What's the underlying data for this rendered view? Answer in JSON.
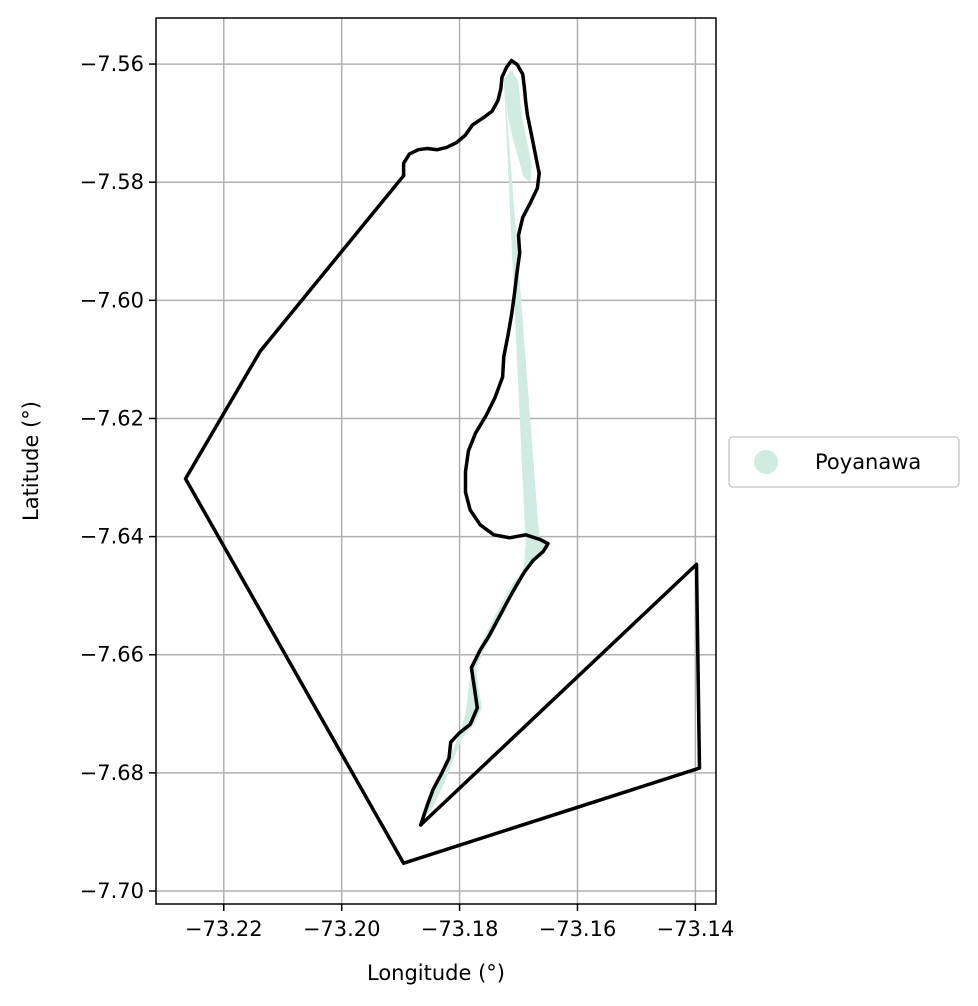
{
  "chart_data": {
    "type": "map",
    "xlabel": "Longitude (°)",
    "ylabel": "Latitude (°)",
    "xlim": [
      -73.2315,
      -73.1365
    ],
    "ylim": [
      -7.7022,
      -7.5522
    ],
    "grid": true,
    "x_ticks": [
      -73.22,
      -73.2,
      -73.18,
      -73.16,
      -73.14
    ],
    "x_tick_labels": [
      "−73.22",
      "−73.20",
      "−73.18",
      "−73.16",
      "−73.14"
    ],
    "y_ticks": [
      -7.56,
      -7.58,
      -7.6,
      -7.62,
      -7.64,
      -7.66,
      -7.68,
      -7.7
    ],
    "y_tick_labels": [
      "−7.56",
      "−7.58",
      "−7.60",
      "−7.62",
      "−7.64",
      "−7.66",
      "−7.68",
      "−7.70"
    ],
    "legend": {
      "placement": "center-right outside",
      "entries": [
        {
          "label": "Poyanawa",
          "color": "#d0ebdf"
        }
      ]
    },
    "colors": {
      "fill": "#d0ebdf",
      "outline": "#000000",
      "grid": "#b0b0b0"
    },
    "outline_polygon": [
      [
        -73.1866,
        -7.6888
      ],
      [
        -73.1398,
        -7.6447
      ],
      [
        -73.1393,
        -7.6792
      ],
      [
        -73.1895,
        -7.6953
      ],
      [
        -73.2265,
        -7.6302
      ],
      [
        -73.2138,
        -7.6086
      ],
      [
        -73.1895,
        -7.5789
      ]
    ],
    "river_line": [
      [
        -73.1895,
        -7.5789
      ],
      [
        -73.1895,
        -7.5768
      ],
      [
        -73.1885,
        -7.5752
      ],
      [
        -73.187,
        -7.5745
      ],
      [
        -73.1855,
        -7.5743
      ],
      [
        -73.1838,
        -7.5745
      ],
      [
        -73.1822,
        -7.5741
      ],
      [
        -73.1805,
        -7.5733
      ],
      [
        -73.179,
        -7.572
      ],
      [
        -73.1778,
        -7.5703
      ],
      [
        -73.176,
        -7.5691
      ],
      [
        -73.1745,
        -7.568
      ],
      [
        -73.1735,
        -7.5662
      ],
      [
        -73.173,
        -7.5642
      ],
      [
        -73.1728,
        -7.5622
      ],
      [
        -73.172,
        -7.5605
      ],
      [
        -73.1712,
        -7.5594
      ],
      [
        -73.1702,
        -7.5601
      ],
      [
        -73.1693,
        -7.5617
      ],
      [
        -73.169,
        -7.564
      ],
      [
        -73.1688,
        -7.5662
      ],
      [
        -73.1685,
        -7.5686
      ],
      [
        -73.168,
        -7.571
      ],
      [
        -73.1675,
        -7.5735
      ],
      [
        -73.167,
        -7.576
      ],
      [
        -73.1665,
        -7.5785
      ],
      [
        -73.1668,
        -7.581
      ],
      [
        -73.168,
        -7.5835
      ],
      [
        -73.1693,
        -7.586
      ],
      [
        -73.17,
        -7.589
      ],
      [
        -73.1698,
        -7.592
      ],
      [
        -73.1703,
        -7.5955
      ],
      [
        -73.1707,
        -7.599
      ],
      [
        -73.1712,
        -7.6025
      ],
      [
        -73.1718,
        -7.606
      ],
      [
        -73.1725,
        -7.6095
      ],
      [
        -73.1727,
        -7.613
      ],
      [
        -73.174,
        -7.6165
      ],
      [
        -73.1755,
        -7.6195
      ],
      [
        -73.1773,
        -7.6225
      ],
      [
        -73.1785,
        -7.6255
      ],
      [
        -73.179,
        -7.629
      ],
      [
        -73.179,
        -7.6325
      ],
      [
        -73.1782,
        -7.6355
      ],
      [
        -73.1765,
        -7.638
      ],
      [
        -73.1742,
        -7.6397
      ],
      [
        -73.1715,
        -7.6402
      ],
      [
        -73.1688,
        -7.6397
      ],
      [
        -73.1663,
        -7.6405
      ],
      [
        -73.165,
        -7.6412
      ],
      [
        -73.1658,
        -7.6425
      ],
      [
        -73.1675,
        -7.644
      ],
      [
        -73.169,
        -7.646
      ],
      [
        -73.1705,
        -7.6485
      ],
      [
        -73.172,
        -7.6512
      ],
      [
        -73.1735,
        -7.654
      ],
      [
        -73.175,
        -7.6568
      ],
      [
        -73.1765,
        -7.6592
      ],
      [
        -73.178,
        -7.6622
      ],
      [
        -73.1775,
        -7.6655
      ],
      [
        -73.177,
        -7.669
      ],
      [
        -73.1782,
        -7.6718
      ],
      [
        -73.18,
        -7.6732
      ],
      [
        -73.1815,
        -7.6748
      ],
      [
        -73.1818,
        -7.6775
      ],
      [
        -73.183,
        -7.68
      ],
      [
        -73.1845,
        -7.6828
      ],
      [
        -73.1855,
        -7.6855
      ],
      [
        -73.1866,
        -7.6888
      ]
    ],
    "fill_polygon": [
      [
        -73.1725,
        -7.5625
      ],
      [
        -73.1712,
        -7.561
      ],
      [
        -73.17,
        -7.563
      ],
      [
        -73.1697,
        -7.5665
      ],
      [
        -73.1692,
        -7.57
      ],
      [
        -73.1685,
        -7.5735
      ],
      [
        -73.1678,
        -7.577
      ],
      [
        -73.168,
        -7.58
      ],
      [
        -73.1692,
        -7.579
      ],
      [
        -73.17,
        -7.576
      ],
      [
        -73.171,
        -7.5725
      ],
      [
        -73.1718,
        -7.569
      ],
      [
        -73.1722,
        -7.5655
      ],
      [
        -73.1665,
        -7.64
      ],
      [
        -73.165,
        -7.6412
      ],
      [
        -73.1668,
        -7.6435
      ],
      [
        -73.169,
        -7.6455
      ],
      [
        -73.171,
        -7.648
      ],
      [
        -73.173,
        -7.6515
      ],
      [
        -73.1748,
        -7.655
      ],
      [
        -73.1765,
        -7.6585
      ],
      [
        -73.178,
        -7.662
      ],
      [
        -73.1785,
        -7.666
      ],
      [
        -73.179,
        -7.67
      ],
      [
        -73.18,
        -7.6735
      ],
      [
        -73.182,
        -7.678
      ],
      [
        -73.184,
        -7.682
      ],
      [
        -73.186,
        -7.686
      ],
      [
        -73.1868,
        -7.6885
      ],
      [
        -73.1845,
        -7.6858
      ],
      [
        -73.1825,
        -7.6815
      ],
      [
        -73.1808,
        -7.677
      ],
      [
        -73.1795,
        -7.674
      ],
      [
        -73.1775,
        -7.6718
      ],
      [
        -73.1762,
        -7.669
      ],
      [
        -73.1768,
        -7.6655
      ],
      [
        -73.1772,
        -7.6622
      ],
      [
        -73.1758,
        -7.6592
      ],
      [
        -73.1742,
        -7.6562
      ],
      [
        -73.1725,
        -7.6532
      ],
      [
        -73.171,
        -7.65
      ],
      [
        -73.1695,
        -7.647
      ],
      [
        -73.169,
        -7.644
      ],
      [
        -73.1688,
        -7.641
      ]
    ]
  }
}
